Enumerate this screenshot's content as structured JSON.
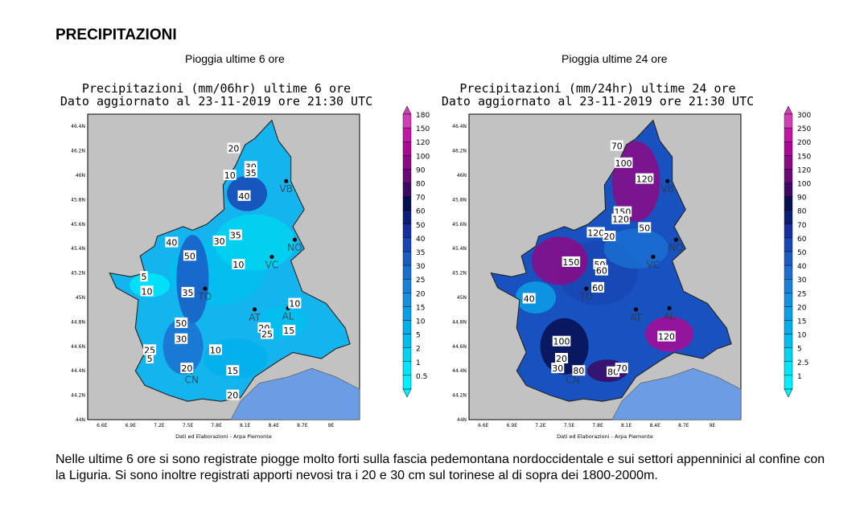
{
  "header": {
    "title": "PRECIPITAZIONI"
  },
  "panels": [
    {
      "caption": "Pioggia ultime 6 ore",
      "map_title_1": "Precipitazioni (mm/06hr) ultime 6 ore",
      "map_title_2": "Dato aggiornato al 23-11-2019 ore 21:30 UTC",
      "legend_values": [
        "180",
        "150",
        "120",
        "100",
        "90",
        "80",
        "70",
        "60",
        "50",
        "40",
        "35",
        "30",
        "25",
        "20",
        "15",
        "10",
        "5",
        "2",
        "1",
        "0.5"
      ],
      "map_labels": [
        {
          "text": "20",
          "lon": 7.98,
          "lat": 46.22
        },
        {
          "text": "10",
          "lon": 7.94,
          "lat": 46.0
        },
        {
          "text": "30",
          "lon": 8.16,
          "lat": 46.07
        },
        {
          "text": "35",
          "lon": 8.16,
          "lat": 46.02
        },
        {
          "text": "40",
          "lon": 8.09,
          "lat": 45.83
        },
        {
          "text": "40",
          "lon": 7.33,
          "lat": 45.45
        },
        {
          "text": "50",
          "lon": 7.52,
          "lat": 45.34
        },
        {
          "text": "30",
          "lon": 7.83,
          "lat": 45.46
        },
        {
          "text": "35",
          "lon": 8.0,
          "lat": 45.51
        },
        {
          "text": "10",
          "lon": 8.03,
          "lat": 45.27
        },
        {
          "text": "5",
          "lon": 7.04,
          "lat": 45.17
        },
        {
          "text": "10",
          "lon": 7.07,
          "lat": 45.05
        },
        {
          "text": "35",
          "lon": 7.5,
          "lat": 45.04
        },
        {
          "text": "10",
          "lon": 8.62,
          "lat": 44.95
        },
        {
          "text": "50",
          "lon": 7.43,
          "lat": 44.79
        },
        {
          "text": "30",
          "lon": 7.43,
          "lat": 44.66
        },
        {
          "text": "20",
          "lon": 8.3,
          "lat": 44.75
        },
        {
          "text": "25",
          "lon": 8.33,
          "lat": 44.7
        },
        {
          "text": "15",
          "lon": 8.56,
          "lat": 44.73
        },
        {
          "text": "25",
          "lon": 7.1,
          "lat": 44.57
        },
        {
          "text": "5",
          "lon": 7.1,
          "lat": 44.5
        },
        {
          "text": "10",
          "lon": 7.79,
          "lat": 44.57
        },
        {
          "text": "20",
          "lon": 7.49,
          "lat": 44.42
        },
        {
          "text": "15",
          "lon": 7.97,
          "lat": 44.4
        },
        {
          "text": "20",
          "lon": 7.97,
          "lat": 44.2
        }
      ]
    },
    {
      "caption": "Pioggia ultime 24 ore",
      "map_title_1": "Precipitazioni (mm/24hr) ultime 24 ore",
      "map_title_2": "Dato aggiornato al 23-11-2019 ore 21:30 UTC",
      "legend_values": [
        "300",
        "250",
        "200",
        "150",
        "120",
        "100",
        "90",
        "80",
        "70",
        "60",
        "50",
        "40",
        "30",
        "25",
        "20",
        "15",
        "10",
        "5",
        "2.5",
        "1"
      ],
      "map_labels": [
        {
          "text": "70",
          "lon": 8.0,
          "lat": 46.24
        },
        {
          "text": "100",
          "lon": 8.07,
          "lat": 46.1
        },
        {
          "text": "120",
          "lon": 8.29,
          "lat": 45.97
        },
        {
          "text": "150",
          "lon": 8.06,
          "lat": 45.7
        },
        {
          "text": "120",
          "lon": 8.04,
          "lat": 45.64
        },
        {
          "text": "50",
          "lon": 8.29,
          "lat": 45.57
        },
        {
          "text": "120",
          "lon": 7.78,
          "lat": 45.53
        },
        {
          "text": "20",
          "lon": 7.92,
          "lat": 45.5
        },
        {
          "text": "150",
          "lon": 7.52,
          "lat": 45.29
        },
        {
          "text": "50",
          "lon": 7.82,
          "lat": 45.27
        },
        {
          "text": "60",
          "lon": 7.84,
          "lat": 45.22
        },
        {
          "text": "60",
          "lon": 7.8,
          "lat": 45.08
        },
        {
          "text": "40",
          "lon": 7.08,
          "lat": 44.99
        },
        {
          "text": "100",
          "lon": 7.42,
          "lat": 44.64
        },
        {
          "text": "120",
          "lon": 8.52,
          "lat": 44.68
        },
        {
          "text": "20",
          "lon": 7.42,
          "lat": 44.5
        },
        {
          "text": "30",
          "lon": 7.38,
          "lat": 44.42
        },
        {
          "text": "80",
          "lon": 7.6,
          "lat": 44.4
        },
        {
          "text": "80",
          "lon": 7.96,
          "lat": 44.39
        },
        {
          "text": "70",
          "lon": 8.05,
          "lat": 44.42
        }
      ]
    }
  ],
  "map_common": {
    "axis_lat_labels": [
      "46.4N",
      "46.2N",
      "46N",
      "45.8N",
      "45.6N",
      "45.4N",
      "45.2N",
      "45N",
      "44.8N",
      "44.6N",
      "44.4N",
      "44.2N",
      "44N"
    ],
    "axis_lon_labels": [
      "6.6E",
      "6.9E",
      "7.2E",
      "7.5E",
      "7.8E",
      "8.1E",
      "8.4E",
      "8.7E",
      "9E"
    ],
    "city_labels": [
      {
        "text": "TO",
        "lon": 7.68,
        "lat": 45.02
      },
      {
        "text": "AT",
        "lon": 8.2,
        "lat": 44.85
      },
      {
        "text": "AL",
        "lon": 8.55,
        "lat": 44.86
      },
      {
        "text": "VC",
        "lon": 8.38,
        "lat": 45.28
      },
      {
        "text": "NO",
        "lon": 8.62,
        "lat": 45.42
      },
      {
        "text": "CN",
        "lon": 7.54,
        "lat": 44.34
      },
      {
        "text": "VB",
        "lon": 8.53,
        "lat": 45.9
      }
    ],
    "credit": "Dati ed Elaborazioni - Arpa Piemonte"
  },
  "colors": {
    "bg_gray": "#c2c2c2",
    "sea": "#6c9ce4",
    "scale": [
      "#00f0ff",
      "#00e6fa",
      "#00d4f0",
      "#00bfee",
      "#00b0ec",
      "#0aa0e6",
      "#1690e0",
      "#1a80d8",
      "#1a6ed0",
      "#1a5cc4",
      "#1846b4",
      "#162ea0",
      "#0a1e78",
      "#060f50",
      "#3c0a64",
      "#6a0a78",
      "#8c0a86",
      "#a80a94",
      "#c018a4",
      "#d040b4"
    ]
  },
  "description": "Nelle ultime 6 ore si sono registrate piogge molto forti sulla fascia pedemontana nordoccidentale e sui settori appenninici al confine con la Liguria. Si sono inoltre registrati apporti nevosi tra i 20 e 30 cm sul torinese al di sopra dei 1800-2000m."
}
